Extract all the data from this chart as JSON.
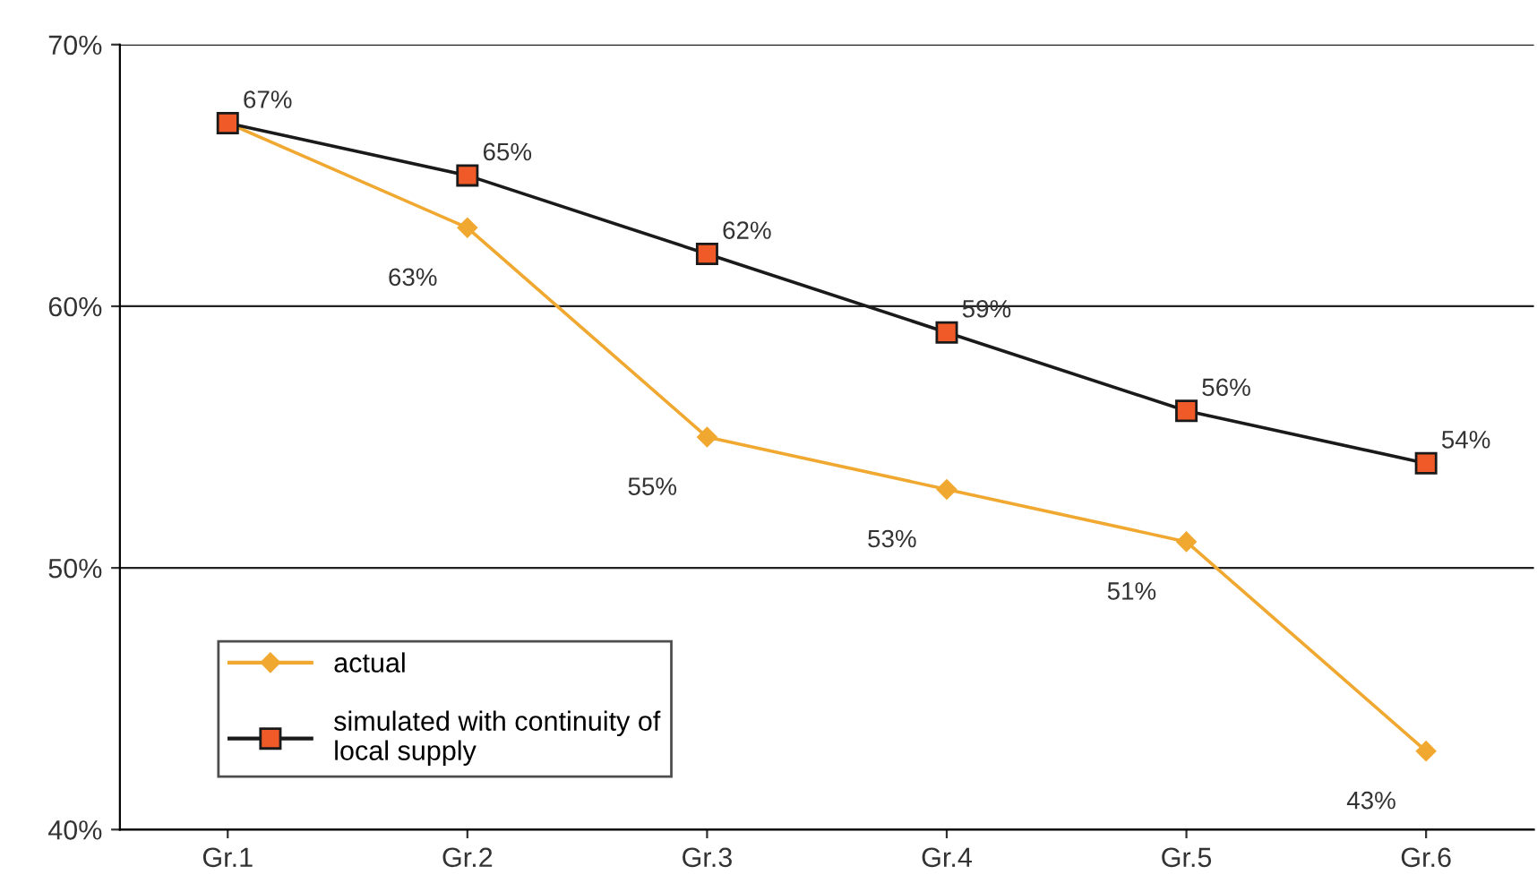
{
  "chart_data": {
    "type": "line",
    "categories": [
      "Gr.1",
      "Gr.2",
      "Gr.3",
      "Gr.4",
      "Gr.5",
      "Gr.6"
    ],
    "series": [
      {
        "name": "actual",
        "color": "#f0a830",
        "marker": "diamond",
        "values": [
          67,
          63,
          55,
          53,
          51,
          43
        ],
        "value_labels": [
          null,
          "63%",
          "55%",
          "53%",
          "51%",
          "43%"
        ]
      },
      {
        "name": "simulated with continuity of\nlocal supply",
        "color": "#1a1a1a",
        "marker": "square",
        "values": [
          67,
          65,
          62,
          59,
          56,
          54
        ],
        "value_labels": [
          "67%",
          "65%",
          "62%",
          "59%",
          "56%",
          "54%"
        ]
      }
    ],
    "ylim": [
      40,
      70
    ],
    "yticks": [
      {
        "value": 40,
        "label": "40%"
      },
      {
        "value": 50,
        "label": "50%"
      },
      {
        "value": 60,
        "label": "60%"
      },
      {
        "value": 70,
        "label": "70%"
      }
    ],
    "grid": "y",
    "legend": "bottom left"
  }
}
